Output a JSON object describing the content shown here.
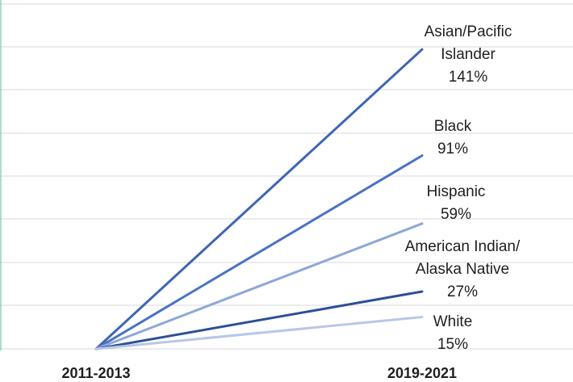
{
  "chart_data": {
    "type": "line",
    "title": "",
    "xlabel": "",
    "ylabel": "",
    "categories": [
      "2011-2013",
      "2019-2021"
    ],
    "ylim": [
      0,
      160
    ],
    "grid": true,
    "legend": "none",
    "series": [
      {
        "name": "Asian/Pacific Islander",
        "label_lines": [
          "Asian/Pacific",
          "Islander",
          "141%"
        ],
        "values": [
          0,
          141
        ],
        "color": "#3f65b3"
      },
      {
        "name": "Black",
        "label_lines": [
          "Black",
          "91%"
        ],
        "values": [
          0,
          91
        ],
        "color": "#4a72c4"
      },
      {
        "name": "Hispanic",
        "label_lines": [
          "Hispanic",
          "59%"
        ],
        "values": [
          0,
          59
        ],
        "color": "#8ea7d9"
      },
      {
        "name": "American Indian/ Alaska Native",
        "label_lines": [
          "American Indian/",
          "Alaska Native",
          "27%"
        ],
        "values": [
          0,
          27
        ],
        "color": "#2c4f97"
      },
      {
        "name": "White",
        "label_lines": [
          "White",
          "15%"
        ],
        "values": [
          0,
          15
        ],
        "color": "#b9c7e6"
      }
    ]
  }
}
